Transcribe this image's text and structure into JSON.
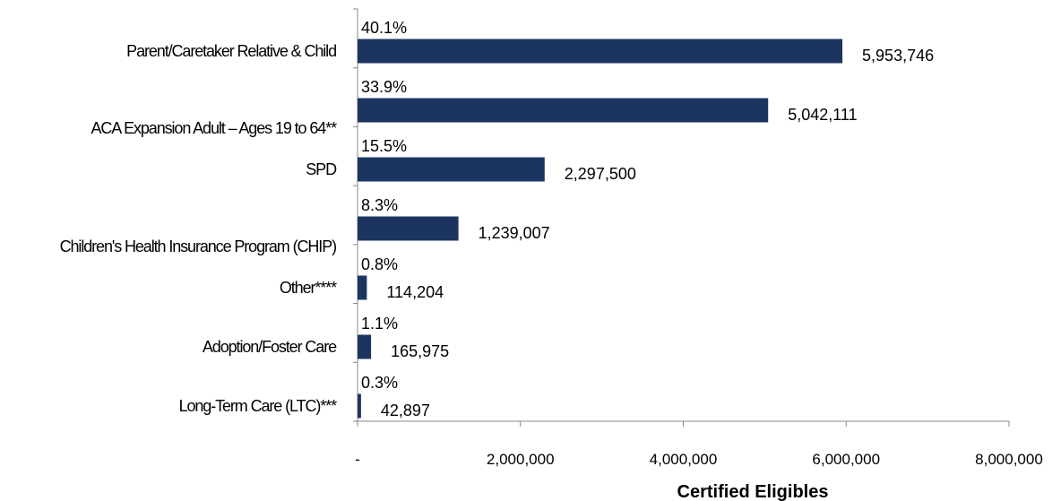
{
  "chart_data": {
    "type": "barh",
    "categories": [
      "Parent/Caretaker Relative & Child",
      "ACA Expansion Adult – Ages 19 to 64**",
      "SPD",
      "Children's Health Insurance Program (CHIP)",
      "Other****",
      "Adoption/Foster Care",
      "Long-Term Care (LTC)***"
    ],
    "values": [
      5953746,
      5042111,
      2297500,
      1239007,
      114204,
      165975,
      42897
    ],
    "value_labels": [
      "5,953,746",
      "5,042,111",
      "2,297,500",
      "1,239,007",
      "114,204",
      "165,975",
      "42,897"
    ],
    "share_labels": [
      "40.1%",
      "33.9%",
      "15.5%",
      "8.3%",
      "0.8%",
      "1.1%",
      "0.3%"
    ],
    "color": "#1c3560",
    "xlabel": "Certified Eligibles",
    "xlim": [
      0,
      8000000
    ],
    "xticks": [
      {
        "value": 0,
        "label": "-"
      },
      {
        "value": 2000000,
        "label": "2,000,000"
      },
      {
        "value": 4000000,
        "label": "4,000,000"
      },
      {
        "value": 6000000,
        "label": "6,000,000"
      },
      {
        "value": 8000000,
        "label": "8,000,000"
      }
    ]
  }
}
